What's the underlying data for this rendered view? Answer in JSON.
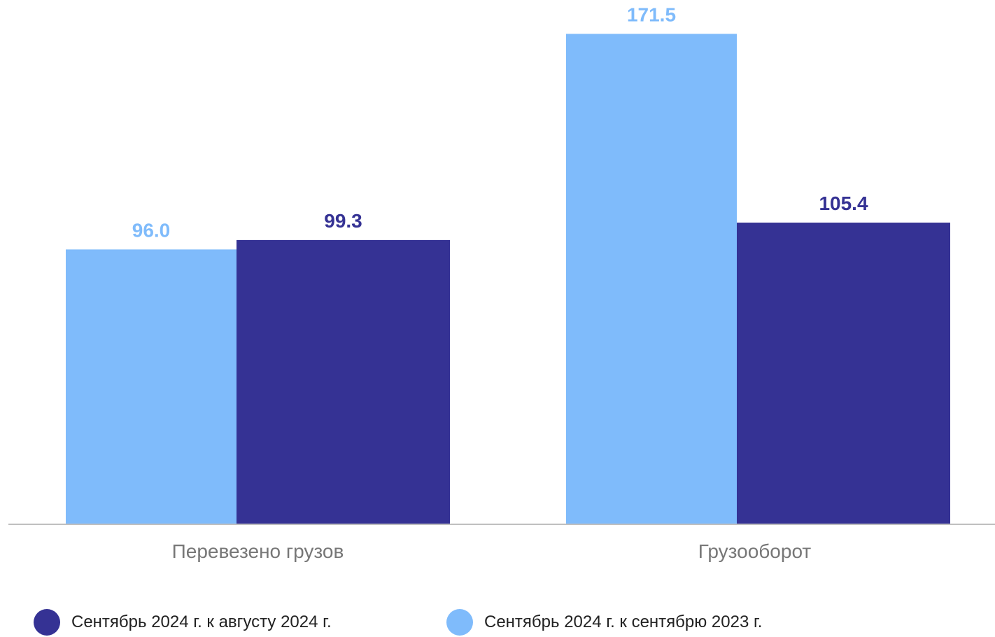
{
  "chart_data": {
    "type": "bar",
    "categories": [
      "Перевезено грузов",
      "Грузооборот"
    ],
    "series": [
      {
        "name": "Сентябрь 2024 г. к сентябрю 2023 г.",
        "values": [
          96.0,
          171.5
        ],
        "color": "#7FBBFB"
      },
      {
        "name": "Сентябрь 2024 г. к августу 2024 г.",
        "values": [
          99.3,
          105.4
        ],
        "color": "#353294"
      }
    ],
    "value_labels": [
      [
        "96.0",
        "171.5"
      ],
      [
        "99.3",
        "105.4"
      ]
    ],
    "ylim": [
      0,
      176
    ],
    "grid": false,
    "legend_position": "bottom"
  },
  "legend": [
    {
      "label": "Сентябрь 2024 г. к августу 2024 г.",
      "color": "#353294"
    },
    {
      "label": "Сентябрь 2024 г. к сентябрю 2023 г.",
      "color": "#7FBBFB"
    }
  ],
  "axis_color": "#BFBFBF",
  "category_label_color": "#777777"
}
